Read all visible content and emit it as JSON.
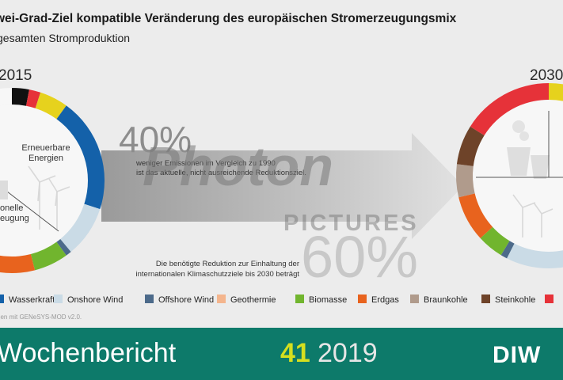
{
  "header": {
    "title": "wei-Grad-Ziel kompatible Veränderung des europäischen Stromerzeugungsmix",
    "subtitle": "gesamten Stromproduktion"
  },
  "chart_data": [
    {
      "type": "pie",
      "title": "2015",
      "center_labels": [
        "Erneuerbare Energien",
        "onelle eugung"
      ],
      "slices": [
        {
          "name": "Steinkohle",
          "value": 3,
          "color": "#111111"
        },
        {
          "name": "",
          "value": 2,
          "color": "#e63239"
        },
        {
          "name": "",
          "value": 5,
          "color": "#e6d21d"
        },
        {
          "name": "Wasserkraft",
          "value": 20,
          "color": "#1461a9"
        },
        {
          "name": "Onshore Wind",
          "value": 9,
          "color": "#cadbe6"
        },
        {
          "name": "Offshore Wind",
          "value": 1,
          "color": "#4c6a8a"
        },
        {
          "name": "Biomasse",
          "value": 6,
          "color": "#71b52e"
        },
        {
          "name": "Erdgas",
          "value": 20,
          "color": "#e8631e"
        },
        {
          "name": "",
          "value": 34,
          "color": "#f7f7f7"
        }
      ]
    },
    {
      "type": "pie",
      "title": "2030",
      "slices": [
        {
          "name": "",
          "value": 7,
          "color": "#e6d21d"
        },
        {
          "name": "",
          "value": 43,
          "color": "#cadbe6"
        },
        {
          "name": "Offshore Wind",
          "value": 1,
          "color": "#4c6a8a"
        },
        {
          "name": "Biomasse",
          "value": 4,
          "color": "#71b52e"
        },
        {
          "name": "Erdgas",
          "value": 7,
          "color": "#e8631e"
        },
        {
          "name": "Braunkohle",
          "value": 5,
          "color": "#b09b8c"
        },
        {
          "name": "Steinkohle",
          "value": 6,
          "color": "#6e4329"
        },
        {
          "name": "",
          "value": 14,
          "color": "#e63239"
        }
      ]
    }
  ],
  "arrow": {
    "big_pct_top": "40%",
    "text_top": "weniger Emissionen im Vergleich zu 1990 ist das aktuelle, nicht ausreichende Reduktionsziel.",
    "text_bottom": "Die benötigte Reduktion zur Einhaltung der internationalen Klimaschutzziele bis 2030 beträgt",
    "big_pct_bottom": "60%"
  },
  "legend": [
    {
      "label": "Wasserkraft",
      "color": "#1461a9"
    },
    {
      "label": "Onshore Wind",
      "color": "#cadbe6"
    },
    {
      "label": "Offshore Wind",
      "color": "#4c6a8a"
    },
    {
      "label": "Geothermie",
      "color": "#f4b58d"
    },
    {
      "label": "Biomasse",
      "color": "#71b52e"
    },
    {
      "label": "Erdgas",
      "color": "#e8631e"
    },
    {
      "label": "Braunkohle",
      "color": "#b09b8c"
    },
    {
      "label": "Steinkohle",
      "color": "#6e4329"
    },
    {
      "label": "",
      "color": "#e63239"
    }
  ],
  "source": "gen mit GENeSYS-MOD v2.0.",
  "footer": {
    "name": "Wochenbericht",
    "number": "41",
    "year": "2019",
    "logo": "DIW"
  },
  "watermark": {
    "line1": "Photon",
    "line2": "PICTURES"
  }
}
